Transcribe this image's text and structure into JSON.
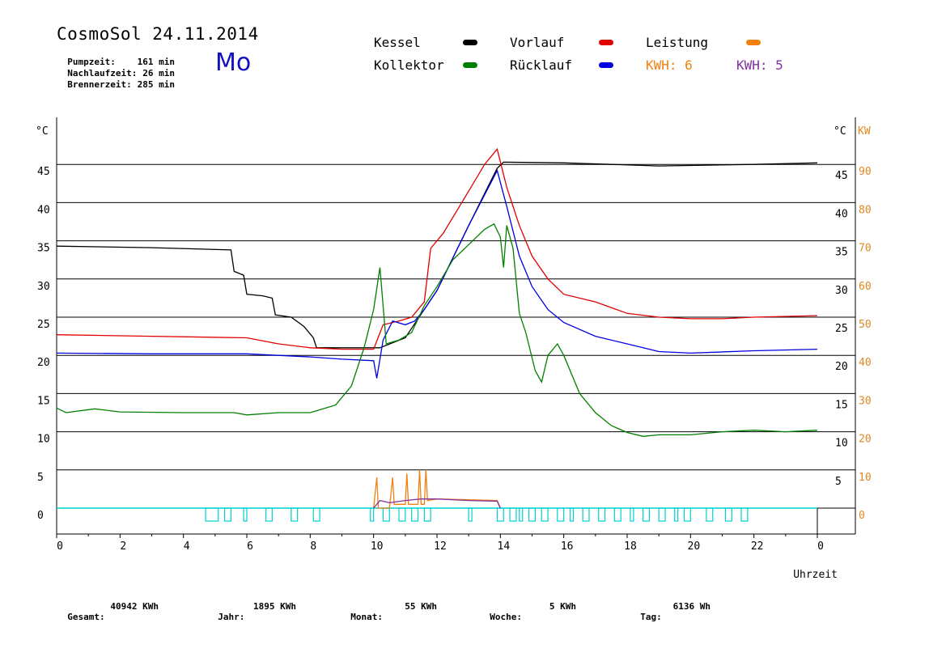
{
  "header": {
    "title": "CosmoSol 24.11.2014",
    "day": "Mo",
    "info": [
      {
        "label": "Pumpzeit:",
        "value": "161 min"
      },
      {
        "label": "Nachlaufzeit:",
        "value": "26 min"
      },
      {
        "label": "Brennerzeit:",
        "value": "285 min"
      }
    ]
  },
  "legend": [
    {
      "label": "Kessel",
      "color": "#000000"
    },
    {
      "label": "Vorlauf",
      "color": "#e00000"
    },
    {
      "label": "Leistung",
      "color": "#f08010"
    },
    {
      "label": "Kollektor",
      "color": "#008000"
    },
    {
      "label": "Rücklauf",
      "color": "#0000e0"
    },
    {
      "label": "KWH: 6",
      "color": "#f08010"
    },
    {
      "label": "KWH: 5",
      "color": "#8030a0"
    }
  ],
  "footer": [
    {
      "label": "Gesamt:",
      "value": "40942 KWh"
    },
    {
      "label": "Jahr:",
      "value": "1895 KWh"
    },
    {
      "label": "Monat:",
      "value": "55 KWh"
    },
    {
      "label": "Woche:",
      "value": "5 KWh"
    },
    {
      "label": "Tag:",
      "value": "6136 Wh"
    }
  ],
  "chart_data": {
    "type": "line",
    "xlabel": "Uhrzeit",
    "ylabel_left": "°C",
    "ylabel_right_temp": "°C",
    "ylabel_right_power": "KW",
    "xlim": [
      0,
      24
    ],
    "ylim": [
      0,
      50
    ],
    "x_ticks": [
      "0",
      "2",
      "4",
      "6",
      "8",
      "10",
      "12",
      "14",
      "16",
      "18",
      "20",
      "22",
      "0"
    ],
    "y_ticks_left": [
      "0",
      "5",
      "10",
      "15",
      "20",
      "25",
      "30",
      "35",
      "40",
      "45"
    ],
    "y_ticks_right_temp": [
      "5",
      "10",
      "15",
      "20",
      "25",
      "30",
      "35",
      "40",
      "45"
    ],
    "y_ticks_right_power": [
      "0",
      "10",
      "20",
      "30",
      "40",
      "50",
      "60",
      "70",
      "80",
      "90"
    ],
    "grid": "horizontal",
    "series": [
      {
        "name": "Kessel",
        "color": "#000000",
        "points": [
          [
            0,
            34.3
          ],
          [
            3,
            34.1
          ],
          [
            5.5,
            33.8
          ],
          [
            5.6,
            31
          ],
          [
            5.9,
            30.5
          ],
          [
            6,
            28
          ],
          [
            6.5,
            27.8
          ],
          [
            6.8,
            27.5
          ],
          [
            6.9,
            25.3
          ],
          [
            7.4,
            25
          ],
          [
            7.8,
            23.8
          ],
          [
            8.1,
            22.3
          ],
          [
            8.2,
            21
          ],
          [
            10.2,
            21
          ],
          [
            11,
            22.3
          ],
          [
            12,
            28.5
          ],
          [
            13,
            37
          ],
          [
            13.9,
            44.5
          ],
          [
            14.1,
            45.3
          ],
          [
            16,
            45.2
          ],
          [
            19,
            44.8
          ],
          [
            22,
            45
          ],
          [
            24,
            45.2
          ]
        ]
      },
      {
        "name": "Vorlauf",
        "color": "#e00000",
        "points": [
          [
            0,
            22.7
          ],
          [
            3,
            22.5
          ],
          [
            6,
            22.3
          ],
          [
            7,
            21.5
          ],
          [
            8,
            21
          ],
          [
            9,
            20.8
          ],
          [
            10,
            20.8
          ],
          [
            10.3,
            24
          ],
          [
            10.8,
            24.5
          ],
          [
            11.2,
            25
          ],
          [
            11.6,
            27
          ],
          [
            11.8,
            34
          ],
          [
            12.2,
            36
          ],
          [
            13,
            41.5
          ],
          [
            13.5,
            45
          ],
          [
            13.9,
            47
          ],
          [
            14.2,
            42
          ],
          [
            14.6,
            37
          ],
          [
            15,
            33
          ],
          [
            15.5,
            30
          ],
          [
            16,
            28
          ],
          [
            17,
            27
          ],
          [
            18,
            25.5
          ],
          [
            19,
            25
          ],
          [
            20,
            24.8
          ],
          [
            21,
            24.8
          ],
          [
            22,
            25
          ],
          [
            24,
            25.2
          ]
        ]
      },
      {
        "name": "Rücklauf",
        "color": "#0000e0",
        "points": [
          [
            0,
            20.3
          ],
          [
            3,
            20.2
          ],
          [
            6,
            20.2
          ],
          [
            8,
            19.8
          ],
          [
            9,
            19.5
          ],
          [
            10,
            19.3
          ],
          [
            10.1,
            17
          ],
          [
            10.3,
            22
          ],
          [
            10.6,
            24.5
          ],
          [
            11,
            24
          ],
          [
            11.3,
            24.5
          ],
          [
            11.6,
            26
          ],
          [
            12,
            28.5
          ],
          [
            13,
            37
          ],
          [
            13.9,
            44.2
          ],
          [
            14.2,
            39.5
          ],
          [
            14.6,
            33
          ],
          [
            15,
            29
          ],
          [
            15.5,
            26
          ],
          [
            16,
            24.3
          ],
          [
            17,
            22.5
          ],
          [
            18,
            21.5
          ],
          [
            19,
            20.5
          ],
          [
            20,
            20.3
          ],
          [
            22,
            20.6
          ],
          [
            24,
            20.8
          ]
        ]
      },
      {
        "name": "Kollektor",
        "color": "#008000",
        "points": [
          [
            0,
            13.1
          ],
          [
            0.3,
            12.5
          ],
          [
            1.2,
            13
          ],
          [
            2,
            12.6
          ],
          [
            4,
            12.5
          ],
          [
            5.6,
            12.5
          ],
          [
            6,
            12.2
          ],
          [
            7,
            12.5
          ],
          [
            8,
            12.5
          ],
          [
            8.8,
            13.5
          ],
          [
            9.3,
            16
          ],
          [
            9.7,
            21
          ],
          [
            10,
            26
          ],
          [
            10.2,
            31.5
          ],
          [
            10.4,
            21.5
          ],
          [
            10.8,
            22
          ],
          [
            11.2,
            23
          ],
          [
            11.6,
            26.5
          ],
          [
            12,
            29
          ],
          [
            12.5,
            32.5
          ],
          [
            13,
            34.5
          ],
          [
            13.5,
            36.5
          ],
          [
            13.8,
            37.2
          ],
          [
            14,
            35.5
          ],
          [
            14.1,
            31.5
          ],
          [
            14.2,
            37
          ],
          [
            14.4,
            34
          ],
          [
            14.6,
            25.5
          ],
          [
            14.8,
            23
          ],
          [
            15.1,
            18
          ],
          [
            15.3,
            16.5
          ],
          [
            15.5,
            20
          ],
          [
            15.8,
            21.5
          ],
          [
            16,
            20
          ],
          [
            16.5,
            15
          ],
          [
            17,
            12.5
          ],
          [
            17.5,
            10.8
          ],
          [
            18,
            9.9
          ],
          [
            18.5,
            9.4
          ],
          [
            19,
            9.6
          ],
          [
            20,
            9.6
          ],
          [
            21,
            10
          ],
          [
            22,
            10.2
          ],
          [
            23,
            10
          ],
          [
            24,
            10.2
          ]
        ]
      },
      {
        "name": "Leistung",
        "color": "#f08010",
        "points": [
          [
            10,
            0
          ],
          [
            10.1,
            4
          ],
          [
            10.15,
            0
          ],
          [
            10.5,
            0
          ],
          [
            10.6,
            4
          ],
          [
            10.65,
            0.5
          ],
          [
            11,
            0.5
          ],
          [
            11.05,
            4.5
          ],
          [
            11.1,
            0.5
          ],
          [
            11.4,
            0.5
          ],
          [
            11.45,
            5
          ],
          [
            11.5,
            0.5
          ],
          [
            11.6,
            0.5
          ],
          [
            11.65,
            5
          ],
          [
            11.7,
            1
          ],
          [
            12,
            1.2
          ],
          [
            13,
            1.1
          ],
          [
            13.9,
            1
          ],
          [
            14,
            0
          ]
        ]
      },
      {
        "name": "KWH",
        "color": "#8030a0",
        "points": [
          [
            10,
            0
          ],
          [
            10.2,
            1
          ],
          [
            10.5,
            0.7
          ],
          [
            11,
            1
          ],
          [
            11.5,
            1.2
          ],
          [
            12,
            1.2
          ],
          [
            13,
            1
          ],
          [
            13.9,
            0.9
          ],
          [
            14,
            0
          ]
        ]
      }
    ],
    "pump_on_intervals": [
      [
        4.7,
        5.1
      ],
      [
        5.3,
        5.5
      ],
      [
        5.9,
        6
      ],
      [
        6.6,
        6.8
      ],
      [
        7.4,
        7.6
      ],
      [
        8.1,
        8.3
      ],
      [
        9.9,
        10
      ],
      [
        10.3,
        10.5
      ],
      [
        10.8,
        11
      ],
      [
        11.2,
        11.4
      ],
      [
        11.6,
        11.8
      ],
      [
        13,
        13.1
      ],
      [
        13.9,
        14.1
      ],
      [
        14.3,
        14.5
      ],
      [
        14.6,
        14.7
      ],
      [
        14.9,
        15.1
      ],
      [
        15.3,
        15.5
      ],
      [
        15.8,
        16
      ],
      [
        16.2,
        16.3
      ],
      [
        16.6,
        16.8
      ],
      [
        17.1,
        17.3
      ],
      [
        17.6,
        17.8
      ],
      [
        18.1,
        18.2
      ],
      [
        18.5,
        18.7
      ],
      [
        19,
        19.2
      ],
      [
        19.5,
        19.6
      ],
      [
        19.8,
        20.0
      ],
      [
        20.5,
        20.7
      ],
      [
        21.1,
        21.3
      ],
      [
        21.6,
        21.8
      ]
    ],
    "pump_color": "#00d0d0"
  }
}
